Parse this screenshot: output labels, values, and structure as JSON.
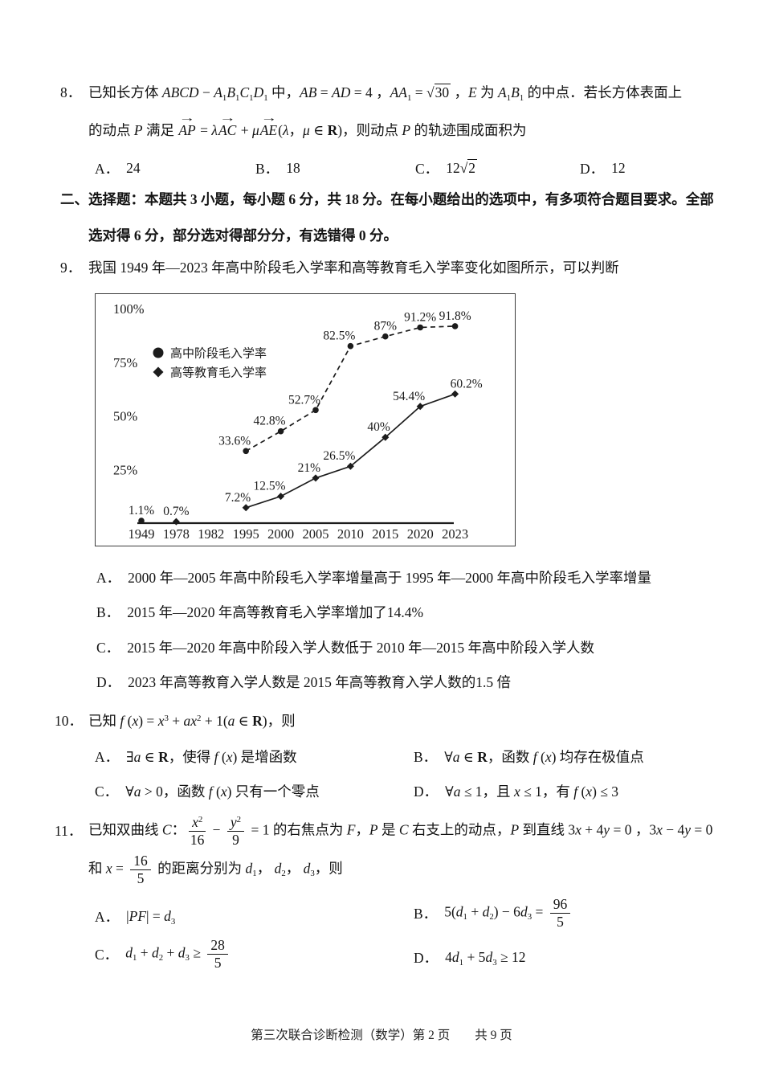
{
  "page": {
    "footer": "第三次联合诊断检测（数学）第 2 页　　共 9 页"
  },
  "q8": {
    "number": "8．",
    "line1_html": "已知长方体 <i>ABCD</i> − <i>A</i><sub>1</sub><i>B</i><sub>1</sub><i>C</i><sub>1</sub><i>D</i><sub>1</sub> 中，<i>AB</i> = <i>AD</i> = 4 ，<i>AA</i><sub>1</sub> = <span class='sqrt'>√<span class='rad'>30</span></span> ，<i>E</i> 为 <i>A</i><sub>1</sub><i>B</i><sub>1</sub> 的中点．若长方体表面上",
    "line2_html": "的动点 <i>P</i> 满足 <span class='vec'><i>AP</i></span> = <i>λ</i><span class='vec'><i>AC</i></span> + <i>μ</i><span class='vec'><i>AE</i></span>(<i>λ</i>，<i>μ</i> ∈ <b>R</b>)，则动点 <i>P</i> 的轨迹围成面积为",
    "options": [
      {
        "label": "A．",
        "html": "24"
      },
      {
        "label": "B．",
        "html": "18"
      },
      {
        "label": "C．",
        "html": "12<span class='sqrt'>√<span class='rad'>2</span></span>"
      },
      {
        "label": "D．",
        "html": "12"
      }
    ]
  },
  "section2": {
    "line1": "二、选择题：本题共 3 小题，每小题 6 分，共 18 分。在每小题给出的选项中，有多项符合题目要求。全部",
    "line2": "选对得 6 分，部分选对得部分分，有选错得 0 分。"
  },
  "q9": {
    "number": "9．",
    "stem": "我国 1949 年—2023 年高中阶段毛入学率和高等教育毛入学率变化如图所示，可以判断",
    "options": [
      {
        "label": "A．",
        "text": "2000 年—2005 年高中阶段毛入学率增量高于 1995 年—2000 年高中阶段毛入学率增量"
      },
      {
        "label": "B．",
        "text": "2015 年—2020 年高等教育毛入学率增加了14.4%"
      },
      {
        "label": "C．",
        "text": "2015 年—2020 年高中阶段入学人数低于 2010 年—2015 年高中阶段入学人数"
      },
      {
        "label": "D．",
        "text": "2023 年高等教育入学人数是 2015 年高等教育入学人数的1.5 倍"
      }
    ]
  },
  "chart_data": {
    "type": "line",
    "title": "",
    "categories": [
      "1949",
      "1978",
      "1982",
      "1995",
      "2000",
      "2005",
      "2010",
      "2015",
      "2020",
      "2023"
    ],
    "y_ticks": [
      {
        "value": 25,
        "label": "25%"
      },
      {
        "value": 50,
        "label": "50%"
      },
      {
        "value": 75,
        "label": "75%"
      },
      {
        "value": 100,
        "label": "100%"
      }
    ],
    "ylim": [
      0,
      105
    ],
    "grid": false,
    "legend_position": "upper-left-inside",
    "series": [
      {
        "name": "高中阶段毛入学率",
        "marker": "circle",
        "line": "dashed",
        "points": [
          {
            "year": "1949",
            "value": 1.1,
            "label": "1.1%",
            "label_pos": "above",
            "connect": false
          },
          {
            "year": "1995",
            "value": 33.6,
            "label": "33.6%",
            "label_pos": "left"
          },
          {
            "year": "2000",
            "value": 42.8,
            "label": "42.8%",
            "label_pos": "left"
          },
          {
            "year": "2005",
            "value": 52.7,
            "label": "52.7%",
            "label_pos": "left"
          },
          {
            "year": "2010",
            "value": 82.5,
            "label": "82.5%",
            "label_pos": "left"
          },
          {
            "year": "2015",
            "value": 87,
            "label": "87%",
            "label_pos": "above"
          },
          {
            "year": "2020",
            "value": 91.2,
            "label": "91.2%",
            "label_pos": "above"
          },
          {
            "year": "2023",
            "value": 91.8,
            "label": "91.8%",
            "label_pos": "above"
          }
        ]
      },
      {
        "name": "高等教育毛入学率",
        "marker": "diamond",
        "line": "solid",
        "points": [
          {
            "year": "1978",
            "value": 0.7,
            "label": "0.7%",
            "label_pos": "above",
            "connect": false
          },
          {
            "year": "1995",
            "value": 7.2,
            "label": "7.2%",
            "label_pos": "left"
          },
          {
            "year": "2000",
            "value": 12.5,
            "label": "12.5%",
            "label_pos": "left"
          },
          {
            "year": "2005",
            "value": 21,
            "label": "21%",
            "label_pos": "left"
          },
          {
            "year": "2010",
            "value": 26.5,
            "label": "26.5%",
            "label_pos": "left"
          },
          {
            "year": "2015",
            "value": 40,
            "label": "40%",
            "label_pos": "left"
          },
          {
            "year": "2020",
            "value": 54.4,
            "label": "54.4%",
            "label_pos": "left"
          },
          {
            "year": "2023",
            "value": 60.2,
            "label": "60.2%",
            "label_pos": "above-right"
          }
        ]
      }
    ]
  },
  "q10": {
    "number": "10．",
    "stem_html": "已知 <i>f</i> (<i>x</i>) = <i>x</i><sup>3</sup> + <i>ax</i><sup>2</sup> + 1(<i>a</i> ∈ <b>R</b>)，则",
    "options": [
      {
        "label": "A．",
        "html": "∃<i>a</i> ∈ <b>R</b>，使得 <i>f</i> (<i>x</i>) 是增函数"
      },
      {
        "label": "B．",
        "html": "∀<i>a</i> ∈ <b>R</b>，函数 <i>f</i> (<i>x</i>) 均存在极值点"
      },
      {
        "label": "C．",
        "html": "∀<i>a</i> &gt; 0，函数 <i>f</i> (<i>x</i>) 只有一个零点"
      },
      {
        "label": "D．",
        "html": "∀<i>a</i> ≤ 1，且 <i>x</i> ≤ 1，有 <i>f</i> (<i>x</i>) ≤ 3"
      }
    ]
  },
  "q11": {
    "number": "11．",
    "stem_line1_html": "已知双曲线 <i>C</i>：<span class='frac'><span class='num'><i>x</i><sup>2</sup></span><span class='den'>16</span></span> − <span class='frac'><span class='num'><i>y</i><sup>2</sup></span><span class='den'>9</span></span> = 1 的右焦点为 <i>F</i>，<i>P</i> 是 <i>C</i> 右支上的动点，<i>P</i> 到直线 3<i>x</i> + 4<i>y</i> = 0 ，3<i>x</i> − 4<i>y</i> = 0",
    "stem_line2_html": "和 <i>x</i> = <span class='frac'><span class='num'>16</span><span class='den'>5</span></span> 的距离分别为 <i>d</i><sub>1</sub>，&nbsp;<i>d</i><sub>2</sub>，&nbsp;<i>d</i><sub>3</sub>，则",
    "options": [
      {
        "label": "A．",
        "html": "|<i>PF</i>| = <i>d</i><sub>3</sub>"
      },
      {
        "label": "B．",
        "html": "5(<i>d</i><sub>1</sub> + <i>d</i><sub>2</sub>) − 6<i>d</i><sub>3</sub> = <span class='frac'><span class='num'>96</span><span class='den'>5</span></span>"
      },
      {
        "label": "C．",
        "html": "<i>d</i><sub>1</sub> + <i>d</i><sub>2</sub> + <i>d</i><sub>3</sub> ≥ <span class='frac'><span class='num'>28</span><span class='den'>5</span></span>"
      },
      {
        "label": "D．",
        "html": "4<i>d</i><sub>1</sub> + 5<i>d</i><sub>3</sub> ≥ 12"
      }
    ]
  }
}
